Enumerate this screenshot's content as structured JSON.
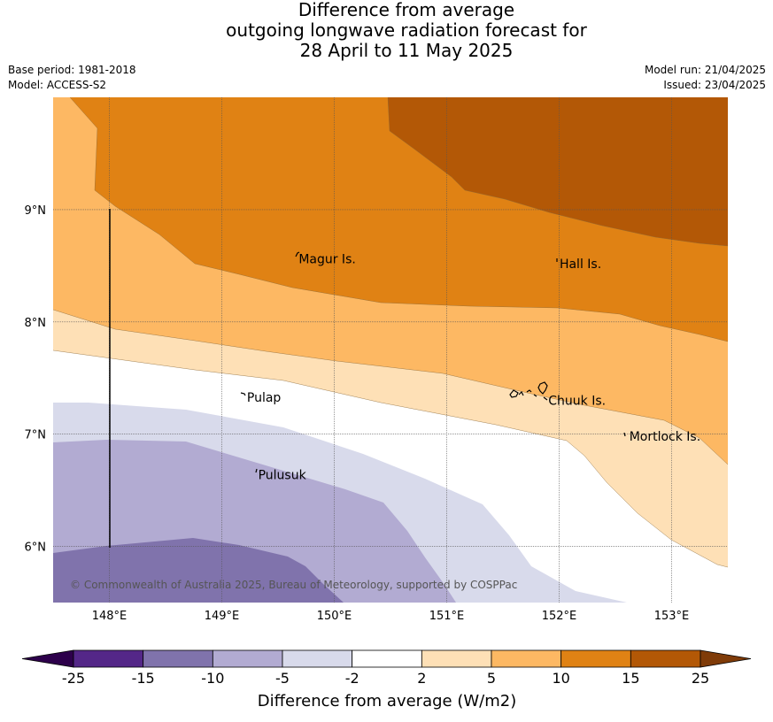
{
  "title": {
    "line1": "Difference from average",
    "line2": "outgoing longwave radiation forecast for",
    "line3": "28 April to 11 May 2025"
  },
  "meta": {
    "base_period": "Base period: 1981-2018",
    "model": "Model: ACCESS-S2",
    "model_run": "Model run: 21/04/2025",
    "issued": "Issued: 23/04/2025"
  },
  "map": {
    "lon_range": [
      147.5,
      153.5
    ],
    "lat_range": [
      5.5,
      10.0
    ],
    "lon_ticks": [
      {
        "value": 148,
        "label": "148°E"
      },
      {
        "value": 149,
        "label": "149°E"
      },
      {
        "value": 150,
        "label": "150°E"
      },
      {
        "value": 151,
        "label": "151°E"
      },
      {
        "value": 152,
        "label": "152°E"
      },
      {
        "value": 153,
        "label": "153°E"
      }
    ],
    "lat_ticks": [
      {
        "value": 9,
        "label": "9°N"
      },
      {
        "value": 8,
        "label": "8°N"
      },
      {
        "value": 7,
        "label": "7°N"
      },
      {
        "value": 6,
        "label": "6°N"
      }
    ],
    "places": [
      {
        "name": "Magur Is.",
        "lon": 149.66,
        "lat": 8.56
      },
      {
        "name": "Hall Is.",
        "lon": 151.98,
        "lat": 8.52
      },
      {
        "name": "Pulap",
        "lon": 149.2,
        "lat": 7.33
      },
      {
        "name": "Chuuk Is.",
        "lon": 151.88,
        "lat": 7.3
      },
      {
        "name": "Mortlock Is.",
        "lon": 152.6,
        "lat": 6.98
      },
      {
        "name": "Pulusuk",
        "lon": 149.3,
        "lat": 6.64
      }
    ],
    "copyright": "© Commonwealth of Australia 2025, Bureau of Meteorology, supported by COSPPac"
  },
  "colorbar": {
    "levels": [
      "-25",
      "-15",
      "-10",
      "-5",
      "-2",
      "2",
      "5",
      "10",
      "15",
      "25"
    ],
    "colors": [
      "#2d004b",
      "#542788",
      "#8073ac",
      "#b2abd2",
      "#d8daeb",
      "#ffffff",
      "#fee0b6",
      "#fdb863",
      "#e08214",
      "#b35806",
      "#7f3b08"
    ],
    "title": "Difference from average (W/m2)"
  }
}
